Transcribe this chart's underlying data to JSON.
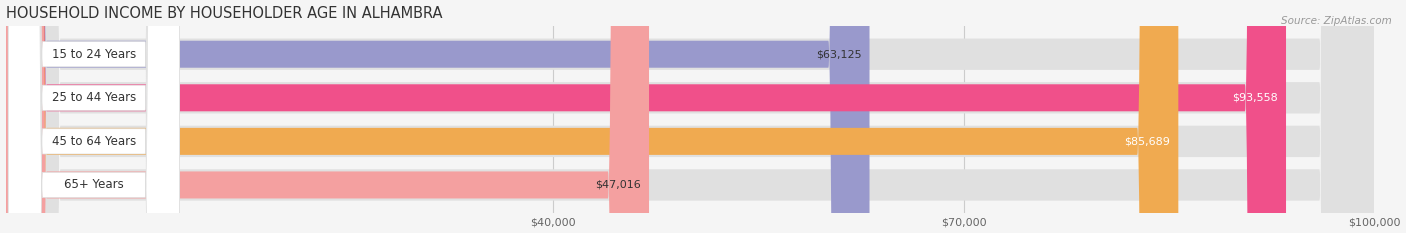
{
  "title": "HOUSEHOLD INCOME BY HOUSEHOLDER AGE IN ALHAMBRA",
  "source": "Source: ZipAtlas.com",
  "categories": [
    "15 to 24 Years",
    "25 to 44 Years",
    "45 to 64 Years",
    "65+ Years"
  ],
  "values": [
    63125,
    93558,
    85689,
    47016
  ],
  "bar_colors": [
    "#9999cc",
    "#f0508a",
    "#f0aa50",
    "#f4a0a0"
  ],
  "bar_bg_color": "#e0e0e0",
  "label_bg_color": "#ffffff",
  "label_text_color": "#333333",
  "value_colors": [
    "#333333",
    "#ffffff",
    "#ffffff",
    "#333333"
  ],
  "bg_color": "#f5f5f5",
  "grid_color": "#cccccc",
  "bar_height": 0.62,
  "xlim": [
    0,
    100000
  ],
  "xticks": [
    40000,
    70000,
    100000
  ],
  "xtick_labels": [
    "$40,000",
    "$70,000",
    "$100,000"
  ],
  "title_fontsize": 10.5,
  "source_fontsize": 7.5,
  "label_fontsize": 8.5,
  "value_fontsize": 8,
  "tick_fontsize": 8,
  "figsize": [
    14.06,
    2.33
  ],
  "dpi": 100
}
